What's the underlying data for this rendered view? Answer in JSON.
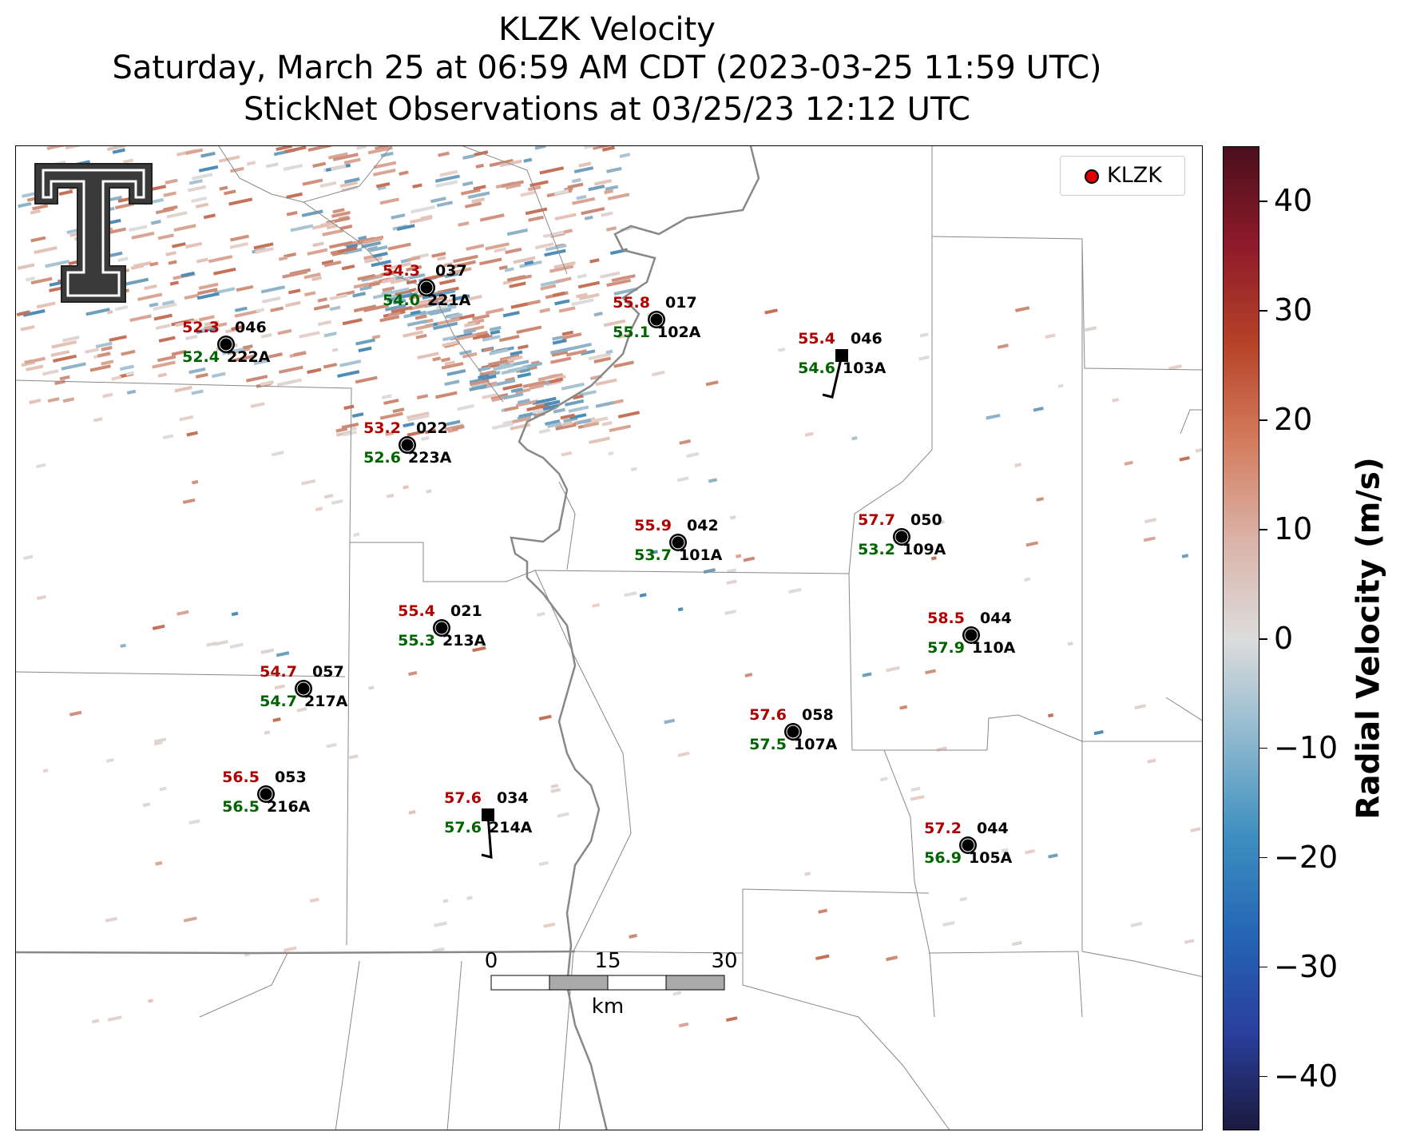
{
  "title": {
    "line1": "KLZK Velocity",
    "line2": "Saturday, March 25 at 06:59 AM CDT (2023-03-25 11:59 UTC)",
    "line3": "StickNet Observations at 03/25/23 12:12 UTC"
  },
  "legend": {
    "label": "KLZK",
    "marker_color": "#e00000"
  },
  "colorbar": {
    "label": "Radial Velocity (m/s)",
    "range": [
      -45,
      45
    ],
    "ticks": [
      "40",
      "30",
      "20",
      "10",
      "0",
      "−10",
      "−20",
      "−30",
      "−40"
    ],
    "colormap": [
      "#1b1a3e",
      "#2a3f9e",
      "#2566b5",
      "#3e8fc0",
      "#8fb9cf",
      "#dcdcdc",
      "#dab3a8",
      "#d47c5e",
      "#b54327",
      "#8e1a2a",
      "#4a0f1c"
    ]
  },
  "scale_bar": {
    "labels": [
      "0",
      "15",
      "30"
    ],
    "unit": "km"
  },
  "stations": [
    {
      "id": "221A",
      "temp": "54.3",
      "dew": "54.0",
      "dir": "037",
      "marker": "circle"
    },
    {
      "id": "222A",
      "temp": "52.3",
      "dew": "52.4",
      "dir": "046",
      "marker": "circle"
    },
    {
      "id": "102A",
      "temp": "55.8",
      "dew": "55.1",
      "dir": "017",
      "marker": "circle"
    },
    {
      "id": "103A",
      "temp": "55.4",
      "dew": "54.6",
      "dir": "046",
      "marker": "square"
    },
    {
      "id": "223A",
      "temp": "53.2",
      "dew": "52.6",
      "dir": "022",
      "marker": "circle"
    },
    {
      "id": "101A",
      "temp": "55.9",
      "dew": "53.7",
      "dir": "042",
      "marker": "circle"
    },
    {
      "id": "109A",
      "temp": "57.7",
      "dew": "53.2",
      "dir": "050",
      "marker": "circle"
    },
    {
      "id": "213A",
      "temp": "55.4",
      "dew": "55.3",
      "dir": "021",
      "marker": "circle"
    },
    {
      "id": "110A",
      "temp": "58.5",
      "dew": "57.9",
      "dir": "044",
      "marker": "circle"
    },
    {
      "id": "217A",
      "temp": "54.7",
      "dew": "54.7",
      "dir": "057",
      "marker": "circle"
    },
    {
      "id": "107A",
      "temp": "57.6",
      "dew": "57.5",
      "dir": "058",
      "marker": "circle"
    },
    {
      "id": "216A",
      "temp": "56.5",
      "dew": "56.5",
      "dir": "053",
      "marker": "circle"
    },
    {
      "id": "214A",
      "temp": "57.6",
      "dew": "57.6",
      "dir": "034",
      "marker": "square"
    },
    {
      "id": "105A",
      "temp": "57.2",
      "dew": "56.9",
      "dir": "044",
      "marker": "circle"
    }
  ],
  "colors": {
    "temp": "#b00000",
    "dew": "#006400",
    "label": "#000000"
  }
}
